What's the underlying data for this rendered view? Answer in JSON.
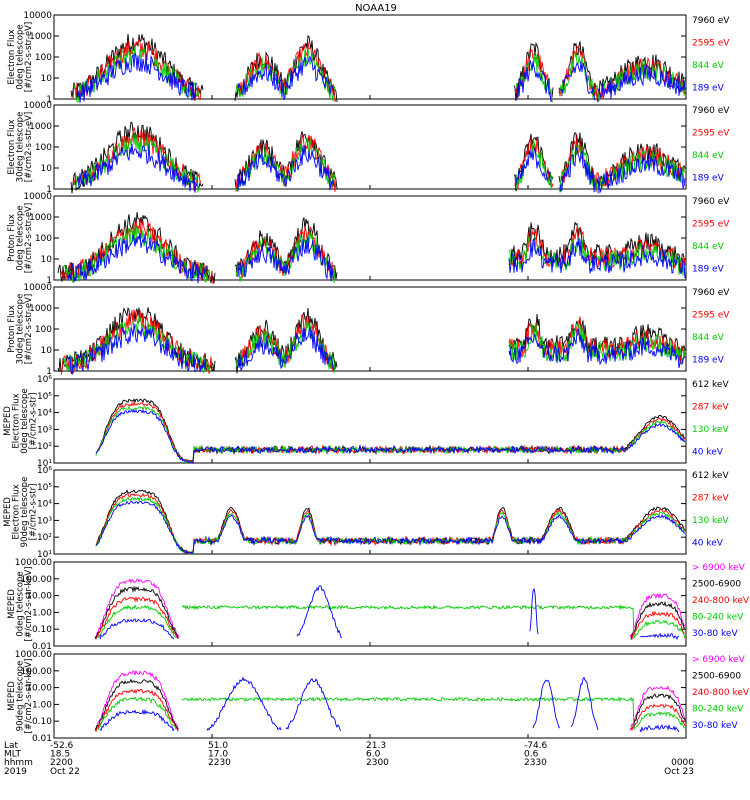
{
  "chart_data": {
    "type": "line",
    "title": "NOAA19",
    "panels": [
      {
        "ylabel": [
          "Electron Flux",
          "0deg telescope",
          "[#/cm2-s-str-eV]"
        ],
        "scale": "log",
        "yticks": [
          "1",
          "10",
          "100",
          "1000",
          "10000"
        ],
        "series": [
          {
            "name": "7960 eV",
            "color": "#000000"
          },
          {
            "name": "2595 eV",
            "color": "#ff0000"
          },
          {
            "name": "844 eV",
            "color": "#00cc00"
          },
          {
            "name": "189 eV",
            "color": "#0000ff"
          }
        ]
      },
      {
        "ylabel": [
          "Electron Flux",
          "30deg telescope",
          "[#/cm2-s-str-eV]"
        ],
        "scale": "log",
        "yticks": [
          "1",
          "10",
          "100",
          "1000",
          "10000"
        ],
        "series": [
          {
            "name": "7960 eV",
            "color": "#000000"
          },
          {
            "name": "2595 eV",
            "color": "#ff0000"
          },
          {
            "name": "844 eV",
            "color": "#00cc00"
          },
          {
            "name": "189 eV",
            "color": "#0000ff"
          }
        ]
      },
      {
        "ylabel": [
          "Proton Flux",
          "0deg telescope",
          "[#/cm2-s-str-eV]"
        ],
        "scale": "log",
        "yticks": [
          "1",
          "10",
          "100",
          "1000",
          "10000"
        ],
        "series": [
          {
            "name": "7960 eV",
            "color": "#000000"
          },
          {
            "name": "2595 eV",
            "color": "#ff0000"
          },
          {
            "name": "844 eV",
            "color": "#00cc00"
          },
          {
            "name": "189 eV",
            "color": "#0000ff"
          }
        ]
      },
      {
        "ylabel": [
          "Proton Flux",
          "30deg telescope",
          "[#/cm2-s-str-eV]"
        ],
        "scale": "log",
        "yticks": [
          "1",
          "10",
          "100",
          "1000",
          "10000"
        ],
        "series": [
          {
            "name": "7960 eV",
            "color": "#000000"
          },
          {
            "name": "2595 eV",
            "color": "#ff0000"
          },
          {
            "name": "844 eV",
            "color": "#00cc00"
          },
          {
            "name": "189 eV",
            "color": "#0000ff"
          }
        ]
      },
      {
        "ylabel": [
          "MEPED",
          "Electron Flux",
          "0deg telescope",
          "[#/cm2-s-str]"
        ],
        "scale": "log",
        "yticks": [
          "10¹",
          "10²",
          "10³",
          "10⁴",
          "10⁵",
          "10⁶"
        ],
        "series": [
          {
            "name": "612 keV",
            "color": "#000000"
          },
          {
            "name": "287 keV",
            "color": "#ff0000"
          },
          {
            "name": "130 keV",
            "color": "#00cc00"
          },
          {
            "name": "40 keV",
            "color": "#0000ff"
          }
        ]
      },
      {
        "ylabel": [
          "MEPED",
          "Electron Flux",
          "90deg telescope",
          "[#/cm2-s-str]"
        ],
        "scale": "log",
        "yticks": [
          "10¹",
          "10²",
          "10³",
          "10⁴",
          "10⁵",
          "10⁶"
        ],
        "series": [
          {
            "name": "612 keV",
            "color": "#000000"
          },
          {
            "name": "287 keV",
            "color": "#ff0000"
          },
          {
            "name": "130 keV",
            "color": "#00cc00"
          },
          {
            "name": "40 keV",
            "color": "#0000ff"
          }
        ]
      },
      {
        "ylabel": [
          "MEPED",
          "0deg telescope",
          "[#/cm2-s-str-keV]"
        ],
        "scale": "log",
        "yticks": [
          "0.01",
          "0.10",
          "1.00",
          "10.00",
          "100.00",
          "1000.00"
        ],
        "series": [
          {
            "name": "> 6900 keV",
            "color": "#ff00ff"
          },
          {
            "name": "2500-6900",
            "color": "#000000"
          },
          {
            "name": "240-800 keV",
            "color": "#ff0000"
          },
          {
            "name": "80-240 keV",
            "color": "#00cc00"
          },
          {
            "name": "30-80 keV",
            "color": "#0000ff"
          }
        ]
      },
      {
        "ylabel": [
          "MEPED",
          "90deg telescope",
          "[#/cm2-s-str-keV]"
        ],
        "scale": "log",
        "yticks": [
          "0.01",
          "0.10",
          "1.00",
          "10.00",
          "100.00",
          "1000.00"
        ],
        "series": [
          {
            "name": "> 6900 keV",
            "color": "#ff00ff"
          },
          {
            "name": "2500-6900",
            "color": "#000000"
          },
          {
            "name": "240-800 keV",
            "color": "#ff0000"
          },
          {
            "name": "80-240 keV",
            "color": "#00cc00"
          },
          {
            "name": "30-80 keV",
            "color": "#0000ff"
          }
        ]
      }
    ],
    "x_axis": {
      "row_labels": [
        "Lat",
        "MLT",
        "hhmm",
        "2019"
      ],
      "ticks": [
        {
          "lat": "-52.6",
          "mlt": "18.5",
          "hhmm": "2200",
          "date": "Oct 22"
        },
        {
          "lat": "51.0",
          "mlt": "17.0",
          "hhmm": "2230",
          "date": ""
        },
        {
          "lat": "21.3",
          "mlt": "6.0",
          "hhmm": "2300",
          "date": ""
        },
        {
          "lat": "-74.6",
          "mlt": "0.6",
          "hhmm": "2330",
          "date": ""
        },
        {
          "lat": "",
          "mlt": "",
          "hhmm": "0000",
          "date": "Oct 23"
        }
      ]
    }
  }
}
